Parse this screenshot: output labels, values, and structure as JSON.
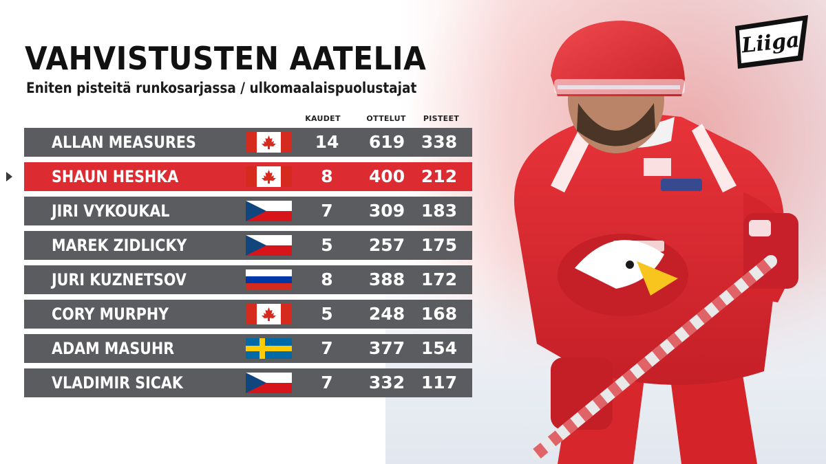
{
  "title": "VAHVISTUSTEN AATELIA",
  "subtitle": "Eniten pisteitä runkosarjassa / ulkomaalaispuolustajat",
  "columns": {
    "seasons": "KAUDET",
    "games": "OTTELUT",
    "points": "PISTEET"
  },
  "rows": [
    {
      "name": "ALLAN MEASURES",
      "flag": "canada-flag",
      "seasons": "14",
      "games": "619",
      "points": "338",
      "highlight": false
    },
    {
      "name": "SHAUN HESHKA",
      "flag": "canada-flag",
      "seasons": "8",
      "games": "400",
      "points": "212",
      "highlight": true
    },
    {
      "name": "JIRI VYKOUKAL",
      "flag": "czech-flag",
      "seasons": "7",
      "games": "309",
      "points": "183",
      "highlight": false
    },
    {
      "name": "MAREK ZIDLICKY",
      "flag": "czech-flag",
      "seasons": "5",
      "games": "257",
      "points": "175",
      "highlight": false
    },
    {
      "name": "JURI KUZNETSOV",
      "flag": "russia-flag",
      "seasons": "8",
      "games": "388",
      "points": "172",
      "highlight": false
    },
    {
      "name": "CORY MURPHY",
      "flag": "canada-flag",
      "seasons": "5",
      "games": "248",
      "points": "168",
      "highlight": false
    },
    {
      "name": "ADAM MASUHR",
      "flag": "sweden-flag",
      "seasons": "7",
      "games": "377",
      "points": "154",
      "highlight": false
    },
    {
      "name": "VLADIMIR SICAK",
      "flag": "czech-flag",
      "seasons": "7",
      "games": "332",
      "points": "117",
      "highlight": false
    }
  ],
  "logo": {
    "text": "Liiga",
    "icon": "liiga-logo"
  },
  "player_photo": {
    "icon": "hockey-player-photo"
  },
  "colors": {
    "row_bg": "#5b5c60",
    "highlight_bg": "#dd2b32",
    "title": "#111111",
    "text_light": "#ffffff"
  }
}
